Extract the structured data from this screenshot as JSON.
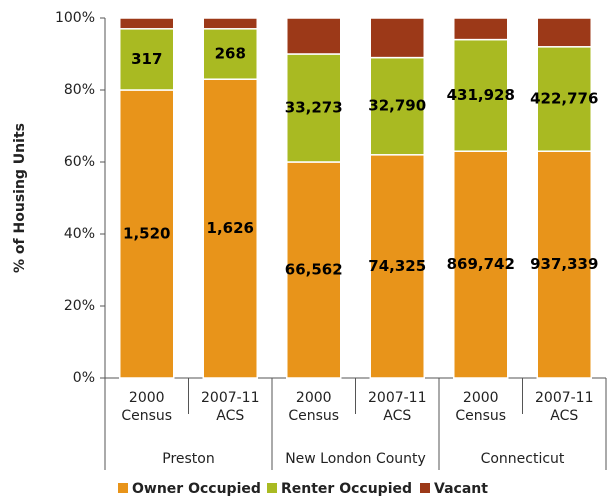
{
  "chart_data": {
    "type": "stacked_bar",
    "y_label": "% of Housing Units",
    "categories": [
      [
        "2000",
        "Census"
      ],
      [
        "2007-11",
        "ACS"
      ],
      [
        "2000",
        "Census"
      ],
      [
        "2007-11",
        "ACS"
      ],
      [
        "2000",
        "Census"
      ],
      [
        "2007-11",
        "ACS"
      ]
    ],
    "groups": [
      "Preston",
      "New London County",
      "Connecticut"
    ],
    "series": [
      {
        "name": "Owner Occupied",
        "color": "#e8941a",
        "values": [
          80,
          83,
          60,
          62,
          63,
          63
        ],
        "count_labels": [
          "1,520",
          "1,626",
          "66,562",
          "74,325",
          "869,742",
          "937,339"
        ]
      },
      {
        "name": "Renter Occupied",
        "color": "#a9ba22",
        "values": [
          17,
          14,
          30,
          27,
          31,
          29
        ],
        "count_labels": [
          "317",
          "268",
          "33,273",
          "32,790",
          "431,928",
          "422,776"
        ]
      },
      {
        "name": "Vacant",
        "color": "#9c3918",
        "values": [
          3,
          3,
          10,
          11,
          6,
          8
        ]
      }
    ],
    "ylim": [
      0,
      100
    ],
    "yticks": [
      {
        "value": 0,
        "label": "0%"
      },
      {
        "value": 20,
        "label": "20%"
      },
      {
        "value": 40,
        "label": "40%"
      },
      {
        "value": 60,
        "label": "60%"
      },
      {
        "value": 80,
        "label": "80%"
      },
      {
        "value": 100,
        "label": "100%"
      }
    ]
  }
}
